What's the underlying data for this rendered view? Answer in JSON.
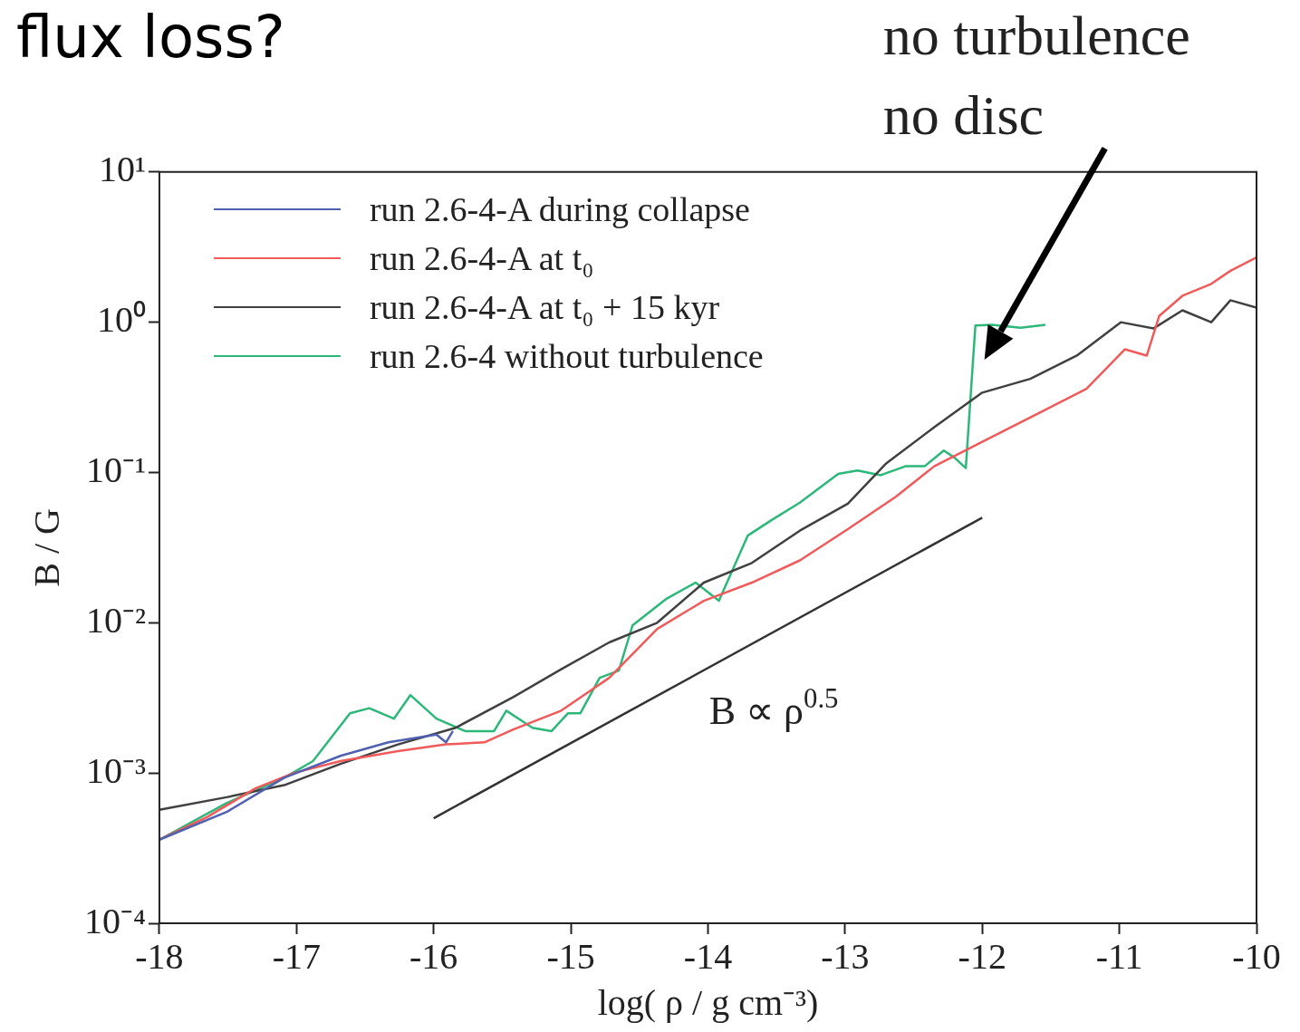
{
  "chart_data": {
    "type": "line",
    "title": "flux loss?",
    "xlabel": "log( ρ / g cm⁻³)",
    "ylabel": "B / G",
    "log": "y",
    "legend": "top left",
    "marker": "none",
    "xlim": [
      -18,
      -10
    ],
    "xticks": [
      -18,
      -17,
      -16,
      -15,
      -14,
      -13,
      -12,
      -11,
      -10
    ],
    "ylim": [
      0.0001,
      10
    ],
    "yticks": [
      {
        "value": 0.0001,
        "label": "10⁻⁴"
      },
      {
        "value": 0.001,
        "label": "10⁻³"
      },
      {
        "value": 0.01,
        "label": "10⁻²"
      },
      {
        "value": 0.1,
        "label": "10⁻¹"
      },
      {
        "value": 1,
        "label": "10⁰"
      },
      {
        "value": 10,
        "label": "10¹"
      }
    ],
    "series": [
      {
        "name": "run 2.6-4-A during collapse",
        "color": "#5060b0",
        "x": [
          -18,
          -17.51,
          -17.09,
          -16.68,
          -16.33,
          -15.98,
          -15.91,
          -15.86
        ],
        "values": [
          0.00036,
          0.00055,
          0.00093,
          0.0013,
          0.0016,
          0.0018,
          0.0016,
          0.0019
        ]
      },
      {
        "name": "run 2.6-4-A at t₀",
        "color": "#f05a5a",
        "x": [
          -18,
          -17.65,
          -17.3,
          -17.02,
          -16.68,
          -16.26,
          -15.91,
          -15.63,
          -15.42,
          -15.07,
          -14.72,
          -14.37,
          -14.03,
          -13.68,
          -13.33,
          -12.98,
          -12.63,
          -12.35,
          -12,
          -11.58,
          -11.24,
          -10.96,
          -10.8,
          -10.71,
          -10.54,
          -10.33,
          -10.19,
          -10
        ],
        "values": [
          0.00036,
          0.00051,
          0.00079,
          0.001,
          0.0012,
          0.0014,
          0.00155,
          0.0016,
          0.00195,
          0.0026,
          0.0043,
          0.0091,
          0.014,
          0.0185,
          0.026,
          0.042,
          0.069,
          0.11,
          0.16,
          0.25,
          0.36,
          0.66,
          0.6,
          1.1,
          1.5,
          1.8,
          2.2,
          2.7
        ]
      },
      {
        "name": "run 2.6-4-A at t₀ + 15 kyr",
        "color": "#404040",
        "x": [
          -18,
          -17.51,
          -17.09,
          -16.68,
          -16.26,
          -15.84,
          -15.42,
          -15.07,
          -14.72,
          -14.37,
          -14.03,
          -13.68,
          -13.33,
          -12.98,
          -12.7,
          -12.35,
          -12,
          -11.65,
          -11.31,
          -10.99,
          -10.75,
          -10.54,
          -10.33,
          -10.19,
          -10
        ],
        "values": [
          0.00057,
          0.00069,
          0.00083,
          0.00115,
          0.00155,
          0.002,
          0.0032,
          0.0049,
          0.0074,
          0.01,
          0.0185,
          0.025,
          0.041,
          0.062,
          0.115,
          0.2,
          0.34,
          0.42,
          0.6,
          1,
          0.91,
          1.2,
          1,
          1.4,
          1.25
        ]
      },
      {
        "name": "run 2.6-4 without turbulence",
        "color": "#2db87a",
        "x": [
          -18,
          -17.51,
          -17.09,
          -16.88,
          -16.61,
          -16.47,
          -16.29,
          -16.17,
          -15.98,
          -15.77,
          -15.56,
          -15.47,
          -15.28,
          -15.14,
          -15.02,
          -14.93,
          -14.79,
          -14.65,
          -14.55,
          -14.3,
          -14.09,
          -13.92,
          -13.71,
          -13.54,
          -13.33,
          -13.05,
          -12.91,
          -12.74,
          -12.56,
          -12.42,
          -12.28,
          -12.2,
          -12.12,
          -12.05,
          -11.93,
          -11.72,
          -11.54
        ],
        "values": [
          0.00036,
          0.00063,
          0.00093,
          0.0012,
          0.0025,
          0.0027,
          0.0023,
          0.0033,
          0.0023,
          0.0019,
          0.0019,
          0.0026,
          0.002,
          0.0019,
          0.0025,
          0.0025,
          0.0043,
          0.0048,
          0.0096,
          0.0145,
          0.0185,
          0.014,
          0.038,
          0.048,
          0.063,
          0.098,
          0.103,
          0.096,
          0.11,
          0.11,
          0.14,
          0.125,
          0.107,
          0.95,
          0.96,
          0.92,
          0.96
        ]
      },
      {
        "type": "line",
        "color": "#333333",
        "x": [
          -16,
          -12
        ],
        "values": [
          0.0005,
          0.05
        ]
      }
    ],
    "annotations": [
      "B ∝ ρ$^{0.5}$",
      "no turbulence\nno disc"
    ]
  }
}
